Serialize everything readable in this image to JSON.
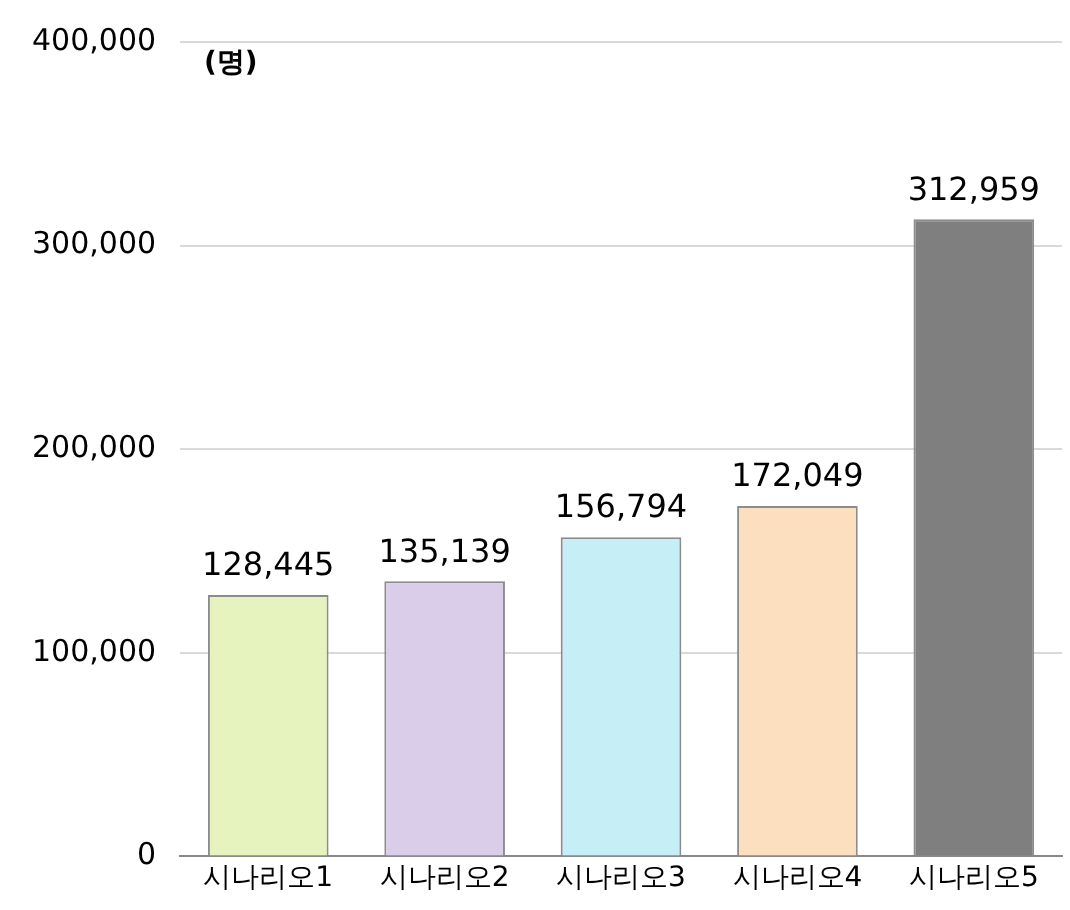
{
  "chart_data": {
    "type": "bar",
    "ylabel": "(명)",
    "categories": [
      "시나리오1",
      "시나리오2",
      "시나리오3",
      "시나리오4",
      "시나리오5"
    ],
    "values": [
      128445,
      135139,
      156794,
      172049,
      312959
    ],
    "colors": [
      "#e6f3bf",
      "#d9cdea",
      "#c6eef7",
      "#fbdfbf",
      "#7f7f7f"
    ],
    "ylim": [
      0,
      400000
    ],
    "yticks": [
      {
        "value": 0,
        "label": "0"
      },
      {
        "value": 100000,
        "label": "100,000"
      },
      {
        "value": 200000,
        "label": "200,000"
      },
      {
        "value": 300000,
        "label": "300,000"
      },
      {
        "value": 400000,
        "label": "400,000"
      }
    ],
    "value_labels": [
      "128,445",
      "135,139",
      "156,794",
      "172,049",
      "312,959"
    ],
    "grid": "y",
    "legend": false
  }
}
